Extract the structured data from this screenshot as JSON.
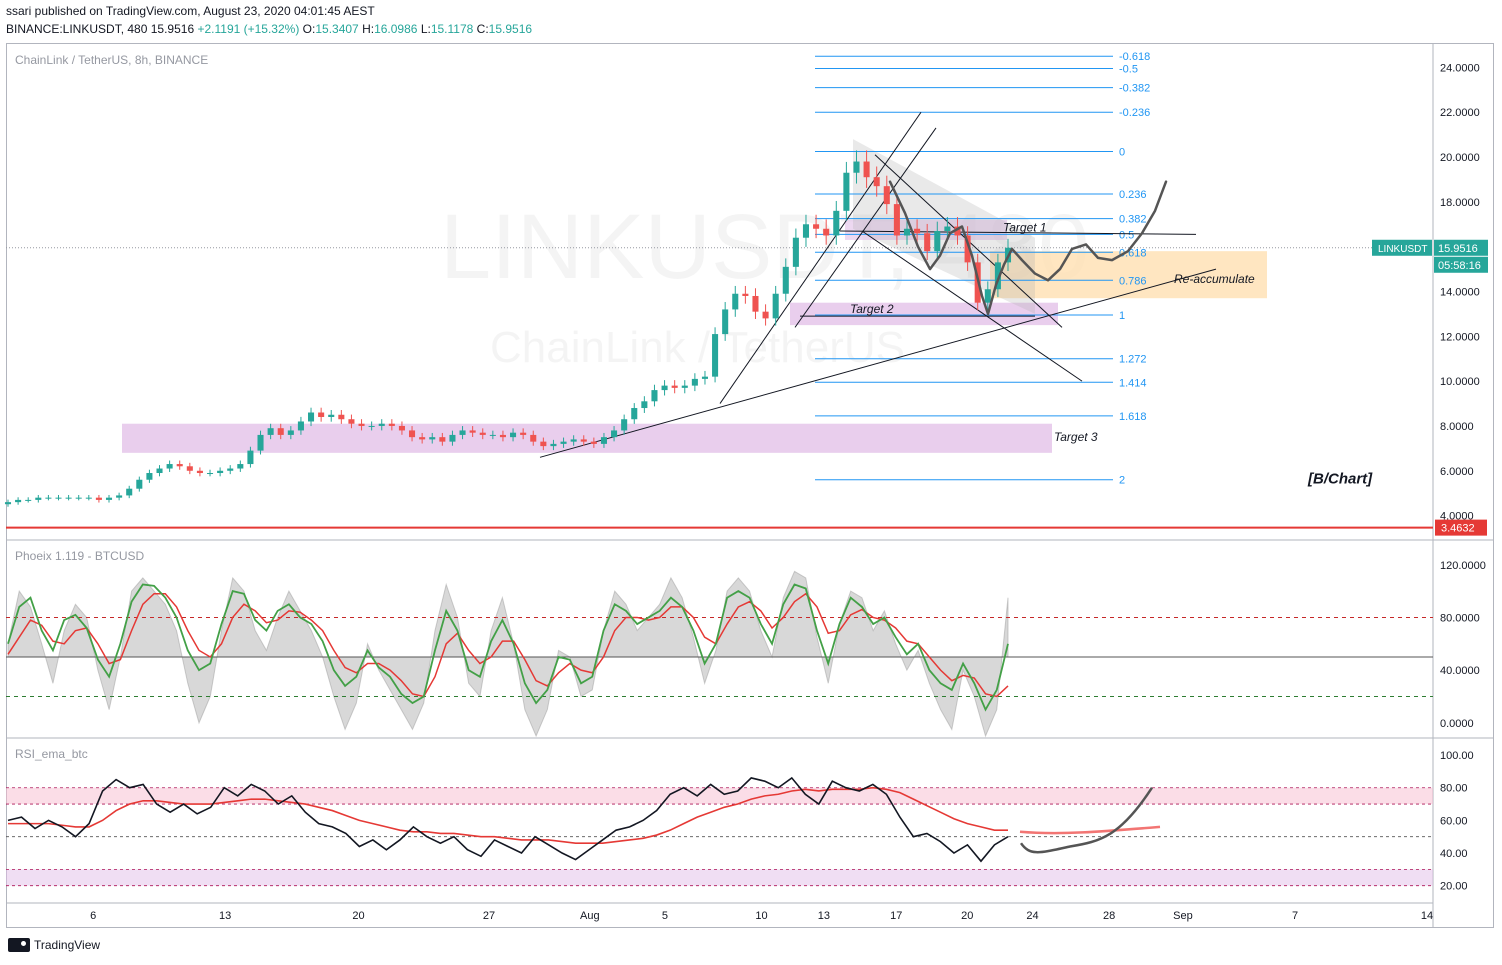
{
  "header": {
    "published": "ssari published on TradingView.com, August 23, 2020 04:01:45 AEST",
    "symbol": "BINANCE:LINKUSDT, 480",
    "price": "15.9516",
    "change": "+2.1191 (+15.32%)",
    "o_label": "O:",
    "o_value": "15.3407",
    "h_label": "H:",
    "h_value": "16.0986",
    "l_label": "L:",
    "l_value": "15.1178",
    "c_label": "C:",
    "c_value": "15.9516"
  },
  "footer": {
    "brand": "TradingView"
  },
  "colors": {
    "up": "#26a69a",
    "down": "#ef5350",
    "fib": "#2196f3",
    "zone_purple": "#e1bee7",
    "zone_orange": "#ffe0b2",
    "red_line": "#e53935"
  },
  "chart_data": [
    {
      "type": "candlestick",
      "title": "ChainLink / TetherUS, 8h, BINANCE",
      "watermark_symbol": "LINKUSDT, 480",
      "watermark_name": "ChainLink / TetherUS",
      "ylim": [
        3.0,
        25.0
      ],
      "y_ticks": [
        "24.0000",
        "22.0000",
        "20.0000",
        "18.0000",
        "16.0000",
        "14.0000",
        "12.0000",
        "10.0000",
        "8.0000",
        "6.0000",
        "4.0000"
      ],
      "x_ticks": [
        "6",
        "13",
        "20",
        "27",
        "Aug",
        "5",
        "10",
        "13",
        "17",
        "20",
        "24",
        "28",
        "Sep",
        "7",
        "14"
      ],
      "x_tick_positions_index": [
        0.06,
        0.153,
        0.247,
        0.339,
        0.41,
        0.463,
        0.531,
        0.575,
        0.626,
        0.676,
        0.722,
        0.776,
        0.828,
        0.907,
        1.0
      ],
      "close_series": [
        4.6,
        4.7,
        4.7,
        4.8,
        4.8,
        4.8,
        4.8,
        4.8,
        4.8,
        4.7,
        4.8,
        4.9,
        5.2,
        5.6,
        5.9,
        6.1,
        6.3,
        6.2,
        6.0,
        5.9,
        5.9,
        6.0,
        6.1,
        6.3,
        6.9,
        7.6,
        7.9,
        7.6,
        7.8,
        8.2,
        8.6,
        8.4,
        8.5,
        8.3,
        8.1,
        8.0,
        8.0,
        8.1,
        8.0,
        7.8,
        7.5,
        7.4,
        7.5,
        7.3,
        7.6,
        7.8,
        7.7,
        7.6,
        7.6,
        7.5,
        7.7,
        7.6,
        7.3,
        7.1,
        7.2,
        7.3,
        7.4,
        7.3,
        7.2,
        7.5,
        7.8,
        8.3,
        8.8,
        9.1,
        9.6,
        9.8,
        9.7,
        9.8,
        10.1,
        10.2,
        12.1,
        13.2,
        13.9,
        13.8,
        13.1,
        12.8,
        13.9,
        15.1,
        16.4,
        17.0,
        16.8,
        16.5,
        17.6,
        19.3,
        19.8,
        19.1,
        18.7,
        17.9,
        16.5,
        16.8,
        16.6,
        15.8,
        16.7,
        16.9,
        16.5,
        15.3,
        13.5,
        14.1,
        15.3,
        15.9516
      ],
      "current_price_label": "15.9516",
      "countdown_label": "05:58:16",
      "symbol_label": "LINKUSDT",
      "red_level_label": "3.4632",
      "red_level": 3.4632,
      "fib_levels": [
        {
          "label": "-0.618",
          "price": 24.5
        },
        {
          "label": "-0.5",
          "price": 23.95
        },
        {
          "label": "-0.382",
          "price": 23.1
        },
        {
          "label": "-0.236",
          "price": 22.0
        },
        {
          "label": "0",
          "price": 20.25
        },
        {
          "label": "0.236",
          "price": 18.35
        },
        {
          "label": "0.382",
          "price": 17.25
        },
        {
          "label": "0.5",
          "price": 16.55
        },
        {
          "label": "0.618",
          "price": 15.75
        },
        {
          "label": "0.786",
          "price": 14.5
        },
        {
          "label": "1",
          "price": 12.95
        },
        {
          "label": "1.272",
          "price": 11.0
        },
        {
          "label": "1.414",
          "price": 9.95
        },
        {
          "label": "1.618",
          "price": 8.45
        },
        {
          "label": "2",
          "price": 5.6
        }
      ],
      "annotations": {
        "target1": "Target 1",
        "target2": "Target 2",
        "target3": "Target 3",
        "reaccumulate": "Re-accumulate",
        "author_tag": "[B/Chart]"
      }
    },
    {
      "type": "line",
      "title": "Phoeix 1.119 - BTCUSD",
      "ylim": [
        -10,
        135
      ],
      "y_ticks": [
        "120.0000",
        "80.0000",
        "40.0000",
        "0.0000"
      ],
      "levels": {
        "upper": 80,
        "middle": 50,
        "lower": 20
      },
      "fast": [
        60,
        88,
        95,
        70,
        55,
        78,
        82,
        72,
        48,
        35,
        60,
        92,
        105,
        104,
        95,
        80,
        55,
        40,
        45,
        75,
        100,
        98,
        78,
        70,
        85,
        90,
        80,
        75,
        62,
        40,
        28,
        35,
        55,
        42,
        35,
        22,
        15,
        20,
        55,
        85,
        70,
        40,
        35,
        62,
        78,
        60,
        30,
        15,
        25,
        50,
        48,
        30,
        35,
        70,
        90,
        85,
        75,
        80,
        85,
        95,
        88,
        70,
        45,
        60,
        95,
        100,
        95,
        75,
        60,
        90,
        105,
        102,
        70,
        45,
        75,
        95,
        88,
        75,
        80,
        65,
        52,
        60,
        40,
        30,
        25,
        45,
        30,
        10,
        25,
        60
      ],
      "slow": [
        52,
        65,
        78,
        74,
        62,
        60,
        70,
        72,
        60,
        45,
        48,
        70,
        90,
        98,
        98,
        88,
        70,
        55,
        50,
        60,
        80,
        90,
        85,
        76,
        78,
        85,
        84,
        78,
        70,
        55,
        42,
        38,
        45,
        45,
        40,
        32,
        22,
        20,
        35,
        60,
        68,
        55,
        45,
        50,
        62,
        62,
        48,
        32,
        28,
        38,
        45,
        40,
        38,
        50,
        70,
        80,
        80,
        78,
        80,
        88,
        88,
        80,
        65,
        60,
        75,
        88,
        92,
        85,
        72,
        80,
        92,
        98,
        88,
        68,
        70,
        82,
        86,
        80,
        78,
        72,
        62,
        60,
        50,
        40,
        32,
        36,
        34,
        22,
        20,
        28
      ],
      "area": [
        60,
        100,
        88,
        60,
        30,
        70,
        90,
        80,
        40,
        10,
        50,
        100,
        110,
        100,
        90,
        70,
        30,
        0,
        20,
        70,
        110,
        100,
        70,
        55,
        80,
        100,
        85,
        70,
        50,
        20,
        -5,
        15,
        60,
        40,
        25,
        10,
        -5,
        15,
        70,
        105,
        80,
        30,
        20,
        70,
        95,
        60,
        10,
        -10,
        10,
        55,
        50,
        20,
        25,
        70,
        100,
        90,
        70,
        80,
        90,
        110,
        95,
        65,
        30,
        55,
        100,
        110,
        100,
        70,
        50,
        95,
        115,
        110,
        65,
        30,
        75,
        100,
        95,
        70,
        85,
        60,
        40,
        55,
        30,
        10,
        -5,
        40,
        20,
        -10,
        10,
        95
      ]
    },
    {
      "type": "line",
      "title": "RSI_ema_btc",
      "ylim": [
        10,
        108
      ],
      "y_ticks": [
        "100.00",
        "80.00",
        "60.00",
        "40.00",
        "20.00"
      ],
      "bands": {
        "upper": [
          70,
          80
        ],
        "lower": [
          20,
          30
        ],
        "middle": 50
      },
      "rsi": [
        60,
        62,
        55,
        60,
        56,
        50,
        58,
        78,
        85,
        80,
        82,
        70,
        65,
        70,
        64,
        68,
        80,
        75,
        82,
        78,
        70,
        75,
        65,
        58,
        56,
        52,
        44,
        48,
        42,
        48,
        56,
        50,
        46,
        50,
        42,
        38,
        48,
        44,
        40,
        50,
        45,
        40,
        36,
        42,
        48,
        54,
        56,
        60,
        66,
        76,
        80,
        75,
        82,
        76,
        78,
        86,
        84,
        80,
        86,
        76,
        70,
        84,
        80,
        78,
        82,
        76,
        62,
        50,
        52,
        47,
        40,
        45,
        35,
        45,
        50
      ],
      "ema": [
        58,
        58,
        58,
        58,
        57,
        56,
        56,
        60,
        66,
        70,
        72,
        72,
        71,
        70,
        70,
        70,
        71,
        72,
        73,
        73,
        72,
        71,
        70,
        68,
        66,
        63,
        60,
        58,
        56,
        54,
        53,
        53,
        52,
        52,
        51,
        50,
        50,
        49,
        48,
        48,
        48,
        47,
        46,
        46,
        46,
        47,
        48,
        49,
        51,
        54,
        58,
        62,
        65,
        68,
        70,
        73,
        75,
        76,
        78,
        79,
        78,
        79,
        79,
        79,
        80,
        79,
        77,
        73,
        69,
        65,
        61,
        58,
        56,
        54,
        54
      ],
      "projection_labels": []
    }
  ]
}
